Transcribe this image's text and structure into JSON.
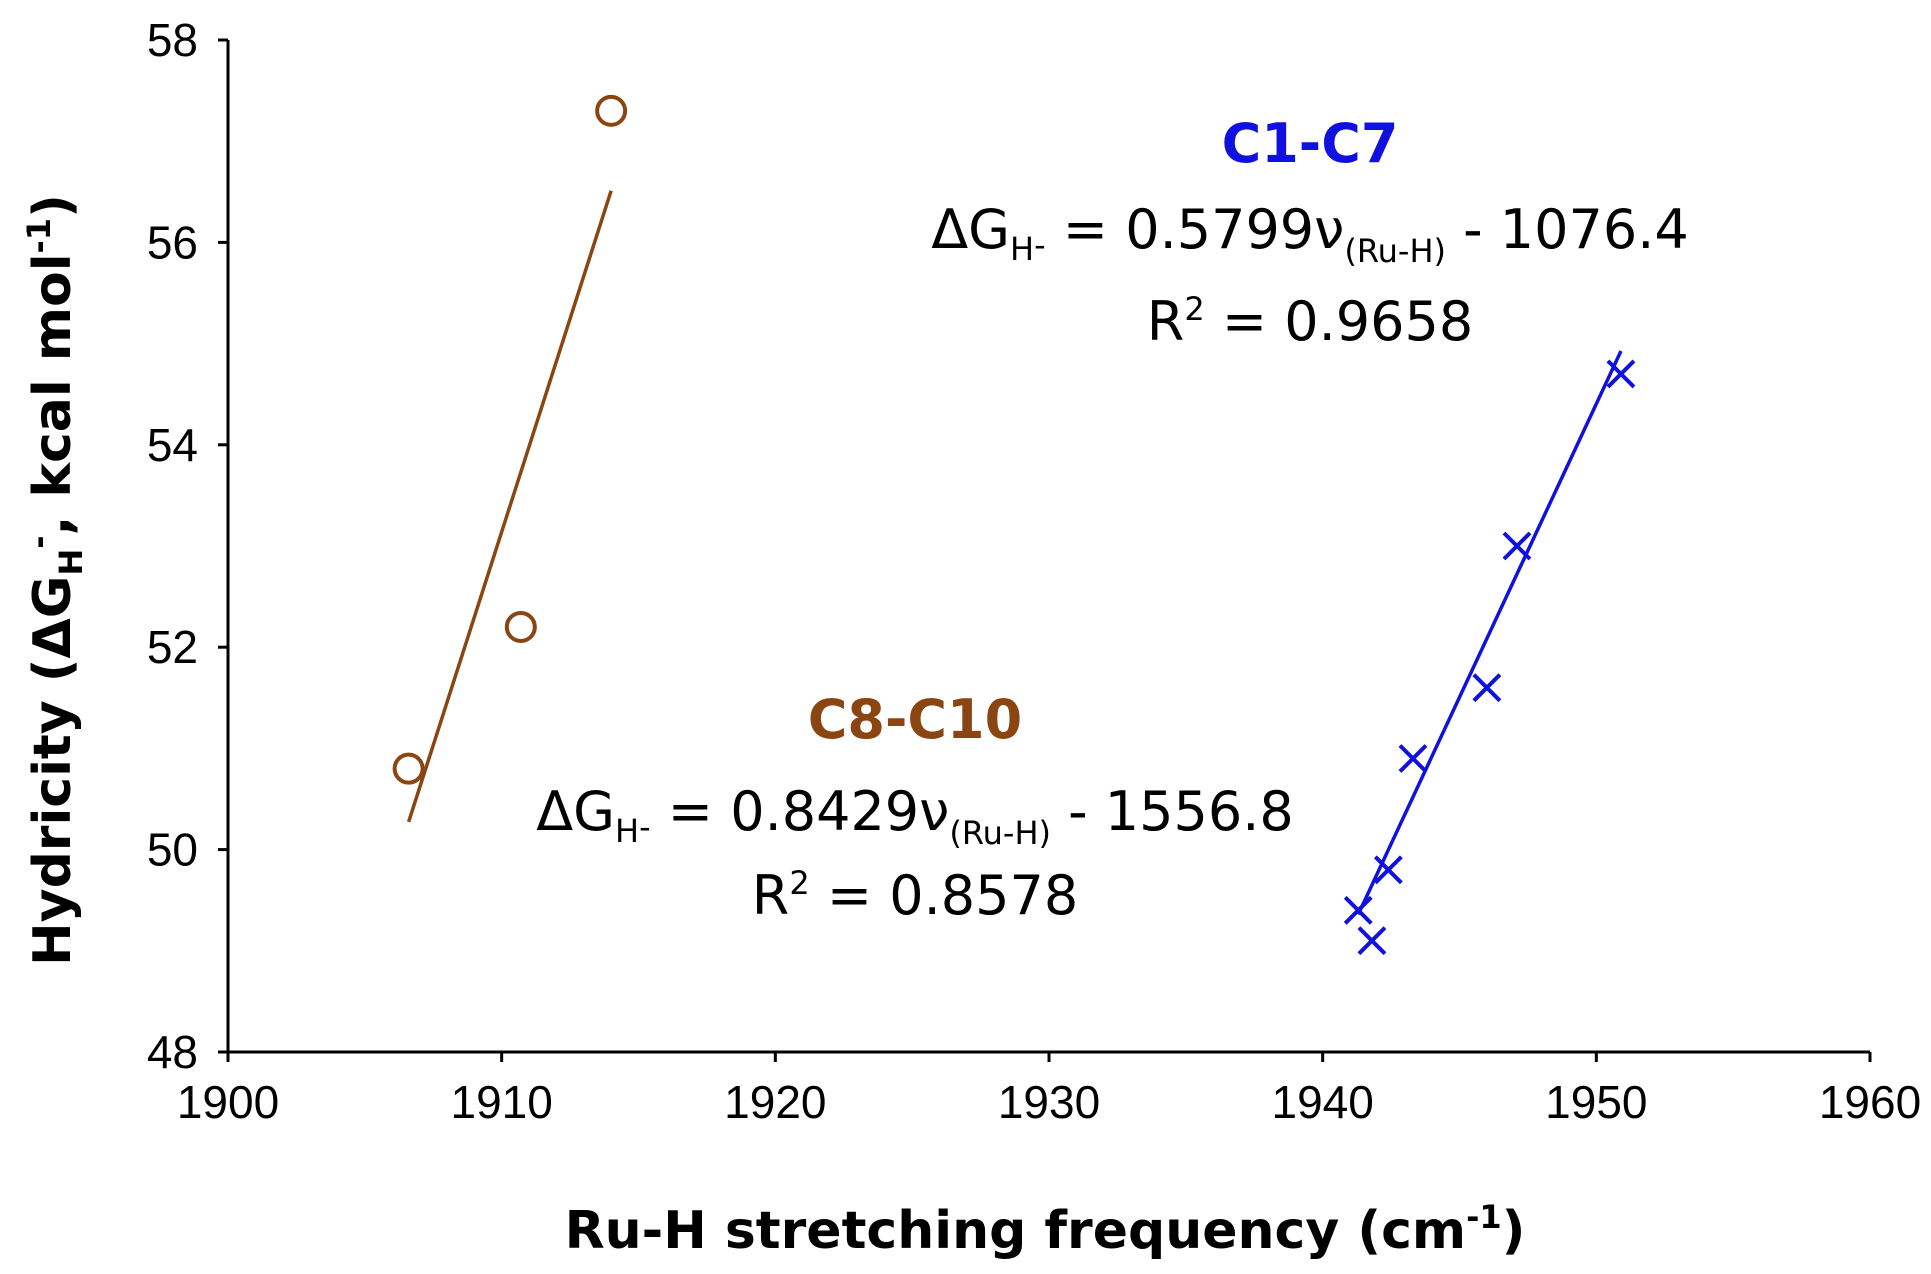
{
  "chart_data": {
    "type": "scatter",
    "title": "",
    "xlabel": "Ru-H stretching frequency (cm",
    "xlabel_sup": "-1",
    "xlabel_end": ")",
    "ylabel": {
      "pre": "Hydricity (ΔG",
      "sub": "H",
      "sup": "-",
      "mid": ", kcal mol",
      "sup2": "-1",
      "end": ")"
    },
    "xlim": [
      1900,
      1960
    ],
    "ylim": [
      48,
      58
    ],
    "xticks": [
      "1900",
      "1910",
      "1920",
      "1930",
      "1940",
      "1950",
      "1960"
    ],
    "yticks": [
      "48",
      "50",
      "52",
      "54",
      "56",
      "58"
    ],
    "grid": false,
    "series": [
      {
        "name": "C8-C10",
        "color": "#8B4513",
        "marker": "circle",
        "x": [
          1906.6,
          1910.7,
          1914.0
        ],
        "y": [
          50.8,
          52.2,
          57.3
        ],
        "fit": {
          "slope": 0.8429,
          "intercept": -1556.8,
          "x_range": [
            1906.6,
            1914.0
          ]
        },
        "annotation": {
          "heading": "C8-C10",
          "eq_delta": "ΔG",
          "eq_sub": "H",
          "eq_sup": "-",
          "eq_mid": " = 0.8429ν",
          "eq_sub2": "(Ru-H)",
          "eq_end": "  - 1556.8",
          "r2_pre": "R",
          "r2_sup": "2",
          "r2_end": " = 0.8578"
        }
      },
      {
        "name": "C1-C7",
        "color": "#1010E0",
        "marker": "x",
        "x": [
          1941.3,
          1941.8,
          1942.4,
          1943.3,
          1946.0,
          1947.1,
          1950.9
        ],
        "y": [
          49.4,
          49.1,
          49.8,
          50.9,
          51.6,
          53.0,
          54.7
        ],
        "fit": {
          "slope": 0.5799,
          "intercept": -1076.4,
          "x_range": [
            1941.3,
            1950.9
          ]
        },
        "annotation": {
          "heading": "C1-C7",
          "eq_delta": "ΔG",
          "eq_sub": "H",
          "eq_sup": "-",
          "eq_mid": " = 0.5799ν",
          "eq_sub2": "(Ru-H)",
          "eq_end": " - 1076.4",
          "r2_pre": "R",
          "r2_sup": "2",
          "r2_end": " = 0.9658"
        }
      }
    ]
  }
}
